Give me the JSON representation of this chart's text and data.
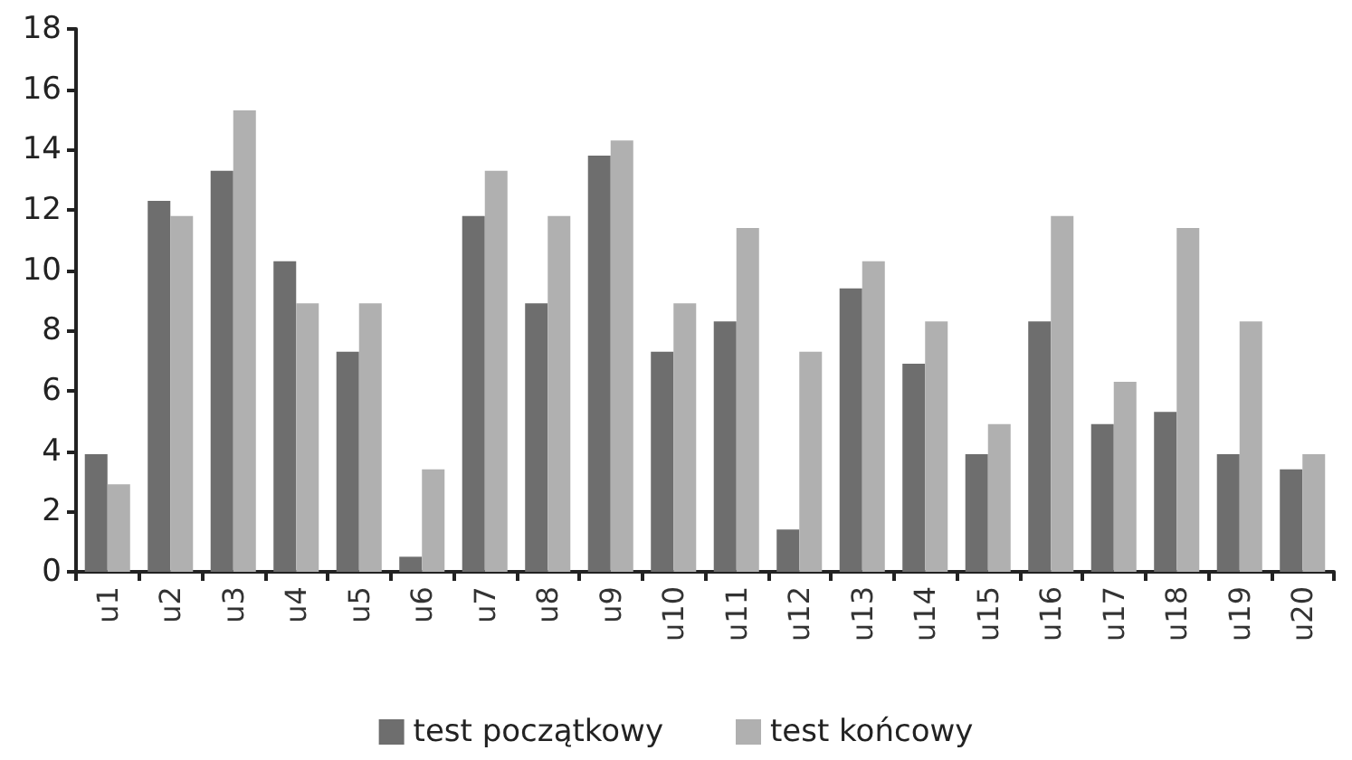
{
  "chart_data": {
    "type": "bar",
    "categories": [
      "u1",
      "u2",
      "u3",
      "u4",
      "u5",
      "u6",
      "u7",
      "u8",
      "u9",
      "u10",
      "u11",
      "u12",
      "u13",
      "u14",
      "u15",
      "u16",
      "u17",
      "u18",
      "u19",
      "u20"
    ],
    "series": [
      {
        "name": "test początkowy",
        "color": "#6e6e6e",
        "values": [
          3.9,
          12.3,
          13.3,
          10.3,
          7.3,
          0.5,
          11.8,
          8.9,
          13.8,
          7.3,
          8.3,
          1.4,
          9.4,
          6.9,
          3.9,
          8.3,
          4.9,
          5.3,
          3.9,
          3.4
        ]
      },
      {
        "name": "test końcowy",
        "color": "#b0b0b0",
        "values": [
          2.9,
          11.8,
          15.3,
          8.9,
          8.9,
          3.4,
          13.3,
          11.8,
          14.3,
          8.9,
          11.4,
          7.3,
          10.3,
          8.3,
          4.9,
          11.8,
          6.3,
          11.4,
          8.3,
          3.9
        ]
      }
    ],
    "ylim": [
      0,
      18
    ],
    "yticks": [
      0,
      2,
      4,
      6,
      8,
      10,
      12,
      14,
      16,
      18
    ],
    "grid": false,
    "legend": "bottom"
  }
}
